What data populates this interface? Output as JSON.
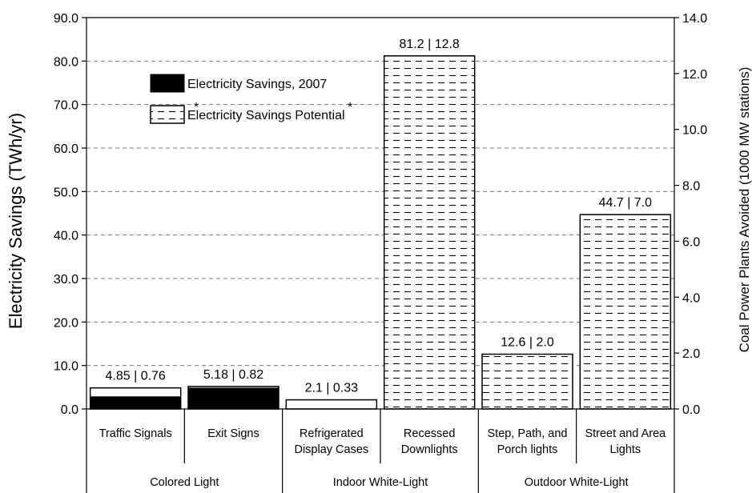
{
  "chart_data": {
    "type": "bar",
    "ylabel": "Electricity Savings (TWh/yr)",
    "y2label": "Coal Power Plants Avoided (1000 MW stations)",
    "ylim": [
      0,
      90
    ],
    "y2lim": [
      0,
      14
    ],
    "yticks": [
      "0.0",
      "10.0",
      "20.0",
      "30.0",
      "40.0",
      "50.0",
      "60.0",
      "70.0",
      "80.0",
      "90.0"
    ],
    "y2ticks": [
      "0.0",
      "2.0",
      "4.0",
      "6.0",
      "8.0",
      "10.0",
      "12.0",
      "14.0"
    ],
    "grid": true,
    "legend_position": "top-left",
    "categories": [
      {
        "label_lines": [
          "Traffic Signals"
        ],
        "group": 0
      },
      {
        "label_lines": [
          "Exit Signs"
        ],
        "group": 0
      },
      {
        "label_lines": [
          "Refrigerated",
          "Display Cases"
        ],
        "group": 1
      },
      {
        "label_lines": [
          "Recessed",
          "Downlights"
        ],
        "group": 1
      },
      {
        "label_lines": [
          "Step, Path, and",
          "Porch lights"
        ],
        "group": 2
      },
      {
        "label_lines": [
          "Street and Area",
          "Lights"
        ],
        "group": 2
      }
    ],
    "groups": [
      "Colored Light",
      "Indoor White-Light",
      "Outdoor White-Light"
    ],
    "series": [
      {
        "name": "Electricity Savings, 2007",
        "values": [
          2.8,
          4.8,
          0,
          0,
          0,
          0
        ]
      },
      {
        "name": "Electricity Savings Potential",
        "values": [
          4.85,
          5.18,
          2.1,
          81.2,
          12.6,
          44.7
        ]
      }
    ],
    "potential_patterned": [
      false,
      false,
      false,
      true,
      true,
      true
    ],
    "data_labels": [
      "4.85  |  0.76",
      "5.18  |  0.82",
      "2.1  |  0.33",
      "81.2  |  12.8",
      "12.6  |  2.0",
      "44.7  |  7.0"
    ],
    "legend_asterisks": [
      "*",
      "*"
    ],
    "colors": {
      "solid": "#000000",
      "outline": "#000000",
      "background": "#ffffff"
    }
  }
}
